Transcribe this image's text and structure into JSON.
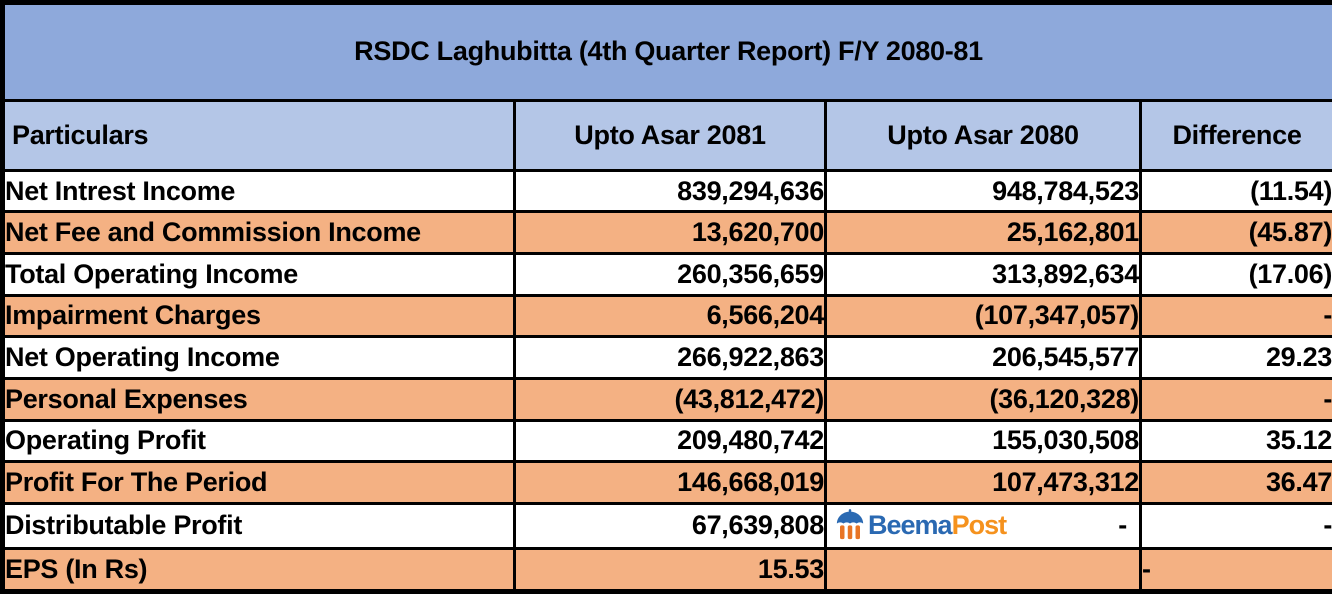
{
  "title": "RSDC Laghubitta (4th Quarter Report) F/Y 2080-81",
  "chart_data": {
    "type": "table",
    "title": "RSDC Laghubitta (4th Quarter Report) F/Y 2080-81",
    "columns": [
      "Particulars",
      "Upto Asar 2081",
      "Upto Asar 2080",
      "Difference"
    ],
    "rows": [
      [
        "Net Intrest Income",
        "839,294,636",
        "948,784,523",
        "(11.54)"
      ],
      [
        "Net Fee and Commission Income",
        "13,620,700",
        "25,162,801",
        "(45.87)"
      ],
      [
        "Total Operating Income",
        "260,356,659",
        "313,892,634",
        "(17.06)"
      ],
      [
        "Impairment Charges",
        "6,566,204",
        "(107,347,057)",
        "-"
      ],
      [
        "Net Operating Income",
        "266,922,863",
        "206,545,577",
        "29.23"
      ],
      [
        "Personal Expenses",
        "(43,812,472)",
        "(36,120,328)",
        "-"
      ],
      [
        "Operating Profit",
        "209,480,742",
        "155,030,508",
        "35.12"
      ],
      [
        "Profit For The Period",
        "146,668,019",
        "107,473,312",
        "36.47"
      ],
      [
        "Distributable Profit",
        "67,639,808",
        "-",
        "-"
      ],
      [
        "EPS (In Rs)",
        "15.53",
        "",
        "-"
      ]
    ]
  },
  "table": {
    "columns": [
      {
        "label": "Particulars"
      },
      {
        "label": "Upto Asar 2081"
      },
      {
        "label": "Upto Asar 2080"
      },
      {
        "label": "Difference"
      }
    ],
    "rows": [
      {
        "particulars": "Net Intrest Income",
        "asar_2081": "839,294,636",
        "asar_2080": "948,784,523",
        "difference": "(11.54)"
      },
      {
        "particulars": "Net Fee and Commission Income",
        "asar_2081": "13,620,700",
        "asar_2080": "25,162,801",
        "difference": "(45.87)"
      },
      {
        "particulars": "Total Operating Income",
        "asar_2081": "260,356,659",
        "asar_2080": "313,892,634",
        "difference": "(17.06)"
      },
      {
        "particulars": "Impairment Charges",
        "asar_2081": "6,566,204",
        "asar_2080": "(107,347,057)",
        "difference": "-"
      },
      {
        "particulars": "Net Operating Income",
        "asar_2081": "266,922,863",
        "asar_2080": "206,545,577",
        "difference": "29.23"
      },
      {
        "particulars": "Personal Expenses",
        "asar_2081": "(43,812,472)",
        "asar_2080": "(36,120,328)",
        "difference": "-"
      },
      {
        "particulars": "Operating Profit",
        "asar_2081": "209,480,742",
        "asar_2080": "155,030,508",
        "difference": "35.12"
      },
      {
        "particulars": "Profit For The Period",
        "asar_2081": "146,668,019",
        "asar_2080": "107,473,312",
        "difference": "36.47"
      },
      {
        "particulars": "Distributable Profit",
        "asar_2081": "67,639,808",
        "asar_2080": "-",
        "difference": "-",
        "has_watermark": true
      },
      {
        "particulars": "EPS (In Rs)",
        "asar_2081": "15.53",
        "asar_2080": "",
        "difference": "-",
        "difference_align": "left"
      }
    ]
  },
  "watermark": {
    "brand_primary": "Beema",
    "brand_secondary": "Post",
    "brand_primary_color": "#2A69B2",
    "brand_secondary_color": "#F5921E"
  },
  "colors": {
    "title_bg": "#8EA9DB",
    "header_bg": "#B4C6E7",
    "alt_row_bg": "#F4B183",
    "row_bg": "#FFFFFF",
    "border": "#000000",
    "text": "#000000"
  }
}
